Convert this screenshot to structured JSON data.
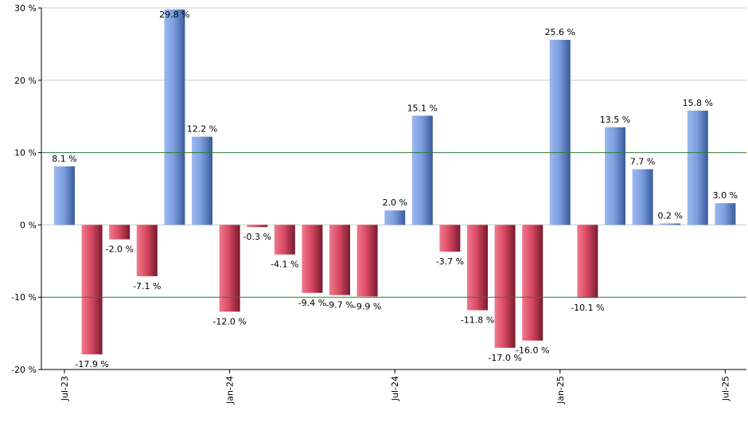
{
  "chart_data": {
    "type": "bar",
    "title": "",
    "xlabel": "",
    "ylabel": "",
    "ylim": [
      -20,
      30
    ],
    "y_ticks": [
      -20,
      -10,
      0,
      10,
      20,
      30
    ],
    "y_tick_labels": [
      "-20 %",
      "-10 %",
      "0 %",
      "10 %",
      "20 %",
      "30 %"
    ],
    "x_tick_labels": [
      {
        "label": "Jul-23",
        "index": 0
      },
      {
        "label": "Jan-24",
        "index": 6
      },
      {
        "label": "Jul-24",
        "index": 12
      },
      {
        "label": "Jan-25",
        "index": 18
      },
      {
        "label": "Jul-25",
        "index": 24
      }
    ],
    "values": [
      8.1,
      -17.9,
      -2.0,
      -7.1,
      29.8,
      12.2,
      -12.0,
      -0.3,
      -4.1,
      -9.4,
      -9.7,
      -9.9,
      2.0,
      15.1,
      -3.7,
      -11.8,
      -17.0,
      -16.0,
      25.6,
      -10.1,
      13.5,
      7.7,
      0.2,
      15.8,
      3.0
    ],
    "value_labels": [
      "8.1 %",
      "-17.9 %",
      "-2.0 %",
      "-7.1 %",
      "29.8 %",
      "12.2 %",
      "-12.0 %",
      "-0.3 %",
      "-4.1 %",
      "-9.4 %",
      "-9.7 %",
      "-9.9 %",
      "2.0 %",
      "15.1 %",
      "-3.7 %",
      "-11.8 %",
      "-17.0 %",
      "-16.0 %",
      "25.6 %",
      "-10.1 %",
      "13.5 %",
      "7.7 %",
      "0.2 %",
      "15.8 %",
      "3.0 %"
    ],
    "reference_lines": [
      10,
      -10
    ],
    "grid": true,
    "colors": {
      "positive": "#7d9fe0",
      "positive_dark": "#3a5a9a",
      "negative": "#d94a63",
      "negative_dark": "#7a1a2e",
      "grid": "#cccccc",
      "reference_line": "#2e7d32",
      "axis": "#000000"
    }
  }
}
